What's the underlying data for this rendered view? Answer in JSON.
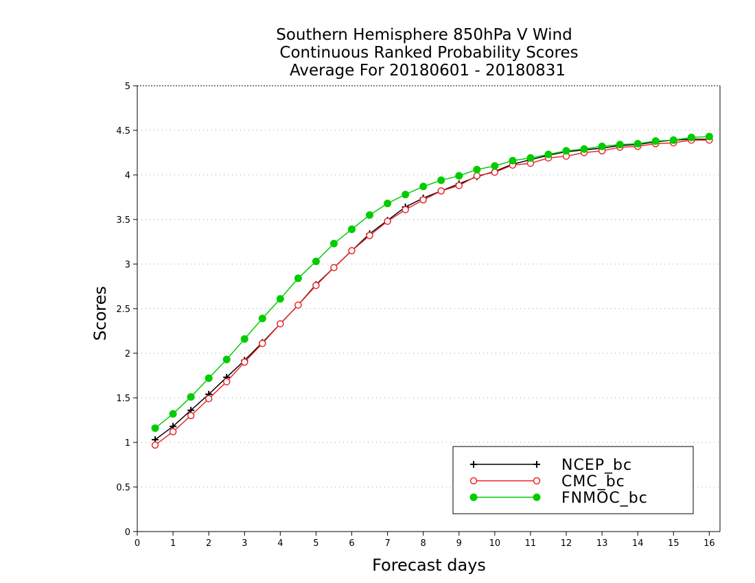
{
  "chart_data": {
    "type": "line",
    "title_lines": [
      "Southern Hemisphere 850hPa V Wind",
      "Continuous Ranked Probability Scores",
      "Average For 20180601 - 20180831"
    ],
    "xlabel": "Forecast days",
    "ylabel": "Scores",
    "xlim": [
      0,
      16.3
    ],
    "ylim": [
      0,
      5
    ],
    "x_ticks": [
      0,
      1,
      2,
      3,
      4,
      5,
      6,
      7,
      8,
      9,
      10,
      11,
      12,
      13,
      14,
      15,
      16
    ],
    "y_ticks": [
      0,
      0.5,
      1,
      1.5,
      2,
      2.5,
      3,
      3.5,
      4,
      4.5,
      5
    ],
    "y_tick_labels": [
      "0",
      "0.5",
      "1",
      "1.5",
      "2",
      "2.5",
      "3",
      "3.5",
      "4",
      "4.5",
      "5"
    ],
    "grid": "horizontal dotted",
    "legend_position": "bottom-right",
    "x": [
      0.5,
      1,
      1.5,
      2,
      2.5,
      3,
      3.5,
      4,
      4.5,
      5,
      5.5,
      6,
      6.5,
      7,
      7.5,
      8,
      8.5,
      9,
      9.5,
      10,
      10.5,
      11,
      11.5,
      12,
      12.5,
      13,
      13.5,
      14,
      14.5,
      15,
      15.5,
      16
    ],
    "series": [
      {
        "name": "NCEP_bc",
        "color": "#000000",
        "marker": "plus",
        "values": [
          1.03,
          1.18,
          1.36,
          1.54,
          1.73,
          1.92,
          2.12,
          2.33,
          2.54,
          2.77,
          2.96,
          3.15,
          3.34,
          3.49,
          3.64,
          3.74,
          3.82,
          3.9,
          3.98,
          4.04,
          4.12,
          4.17,
          4.22,
          4.26,
          4.28,
          4.3,
          4.33,
          4.34,
          4.37,
          4.39,
          4.4,
          4.4
        ]
      },
      {
        "name": "CMC_bc",
        "color": "#e8262a",
        "marker": "open-circle",
        "values": [
          0.97,
          1.12,
          1.3,
          1.49,
          1.68,
          1.9,
          2.11,
          2.33,
          2.54,
          2.76,
          2.96,
          3.15,
          3.32,
          3.48,
          3.61,
          3.72,
          3.82,
          3.88,
          3.99,
          4.03,
          4.11,
          4.13,
          4.19,
          4.21,
          4.25,
          4.27,
          4.31,
          4.32,
          4.35,
          4.36,
          4.39,
          4.39
        ]
      },
      {
        "name": "FNMOC_bc",
        "color": "#00cc00",
        "marker": "filled-circle",
        "values": [
          1.16,
          1.32,
          1.51,
          1.72,
          1.93,
          2.16,
          2.39,
          2.61,
          2.84,
          3.03,
          3.23,
          3.39,
          3.55,
          3.68,
          3.78,
          3.87,
          3.94,
          3.99,
          4.06,
          4.1,
          4.16,
          4.19,
          4.23,
          4.27,
          4.29,
          4.32,
          4.34,
          4.35,
          4.38,
          4.39,
          4.42,
          4.43
        ]
      }
    ]
  }
}
